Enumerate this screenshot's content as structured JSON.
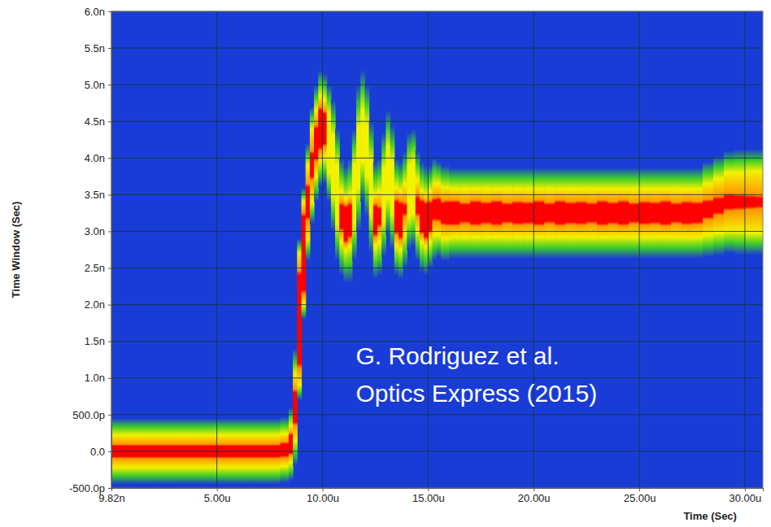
{
  "chart_data": {
    "type": "heatmap",
    "x_label": "Time (Sec)",
    "y_label": "Time Window (Sec)",
    "annotations": [
      "G. Rodriguez et al.",
      "Optics Express (2015)"
    ],
    "grid": true,
    "xlim": [
      9.82e-09,
      3.085e-05
    ],
    "xticks": [
      {
        "value": 9.82e-09,
        "label": "9.82n"
      },
      {
        "value": 5e-06,
        "label": "5.00u"
      },
      {
        "value": 1e-05,
        "label": "10.00u"
      },
      {
        "value": 1.5e-05,
        "label": "15.00u"
      },
      {
        "value": 2e-05,
        "label": "20.00u"
      },
      {
        "value": 2.5e-05,
        "label": "25.00u"
      },
      {
        "value": 3e-05,
        "label": "30.00u"
      }
    ],
    "ylim": [
      -5e-10,
      6e-09
    ],
    "yticks": [
      {
        "value": -5e-10,
        "label": "-500.0p"
      },
      {
        "value": 0,
        "label": "0.0"
      },
      {
        "value": 5e-10,
        "label": "500.0p"
      },
      {
        "value": 1e-09,
        "label": "1.0n"
      },
      {
        "value": 1.5e-09,
        "label": "1.5n"
      },
      {
        "value": 2e-09,
        "label": "2.0n"
      },
      {
        "value": 2.5e-09,
        "label": "2.5n"
      },
      {
        "value": 3e-09,
        "label": "3.0n"
      },
      {
        "value": 3.5e-09,
        "label": "3.5n"
      },
      {
        "value": 4e-09,
        "label": "4.0n"
      },
      {
        "value": 4.5e-09,
        "label": "4.5n"
      },
      {
        "value": 5e-09,
        "label": "5.0n"
      },
      {
        "value": 5.5e-09,
        "label": "5.5n"
      },
      {
        "value": 6e-09,
        "label": "6.0n"
      }
    ],
    "bins": [
      9.82e-09,
      1e-06,
      2e-06,
      3e-06,
      4e-06,
      5e-06,
      6e-06,
      7e-06,
      8e-06,
      8.4e-06,
      8.6e-06,
      8.8e-06,
      9e-06,
      9.2e-06,
      9.4e-06,
      9.6e-06,
      9.8e-06,
      1e-05,
      1.02e-05,
      1.04e-05,
      1.06e-05,
      1.08e-05,
      1.1e-05,
      1.12e-05,
      1.14e-05,
      1.16e-05,
      1.18e-05,
      1.2e-05,
      1.22e-05,
      1.24e-05,
      1.26e-05,
      1.28e-05,
      1.3e-05,
      1.32e-05,
      1.34e-05,
      1.36e-05,
      1.38e-05,
      1.4e-05,
      1.42e-05,
      1.44e-05,
      1.46e-05,
      1.48e-05,
      1.5e-05,
      1.52e-05,
      1.54e-05,
      1.56e-05,
      1.58e-05,
      1.6e-05,
      1.65e-05,
      1.7e-05,
      1.75e-05,
      1.8e-05,
      1.85e-05,
      1.9e-05,
      1.95e-05,
      2e-05,
      2.05e-05,
      2.1e-05,
      2.15e-05,
      2.2e-05,
      2.25e-05,
      2.3e-05,
      2.35e-05,
      2.4e-05,
      2.45e-05,
      2.5e-05,
      2.55e-05,
      2.6e-05,
      2.65e-05,
      2.7e-05,
      2.75e-05,
      2.8e-05,
      2.85e-05,
      2.9e-05,
      2.95e-05,
      3e-05,
      3.05e-05,
      3.085e-05
    ],
    "center": [
      0,
      0,
      0,
      0,
      0,
      0,
      0,
      0,
      2e-11,
      1e-10,
      6e-10,
      1.8e-09,
      2.7e-09,
      3.4e-09,
      3.9e-09,
      4.2e-09,
      4.4e-09,
      4.4e-09,
      4.2e-09,
      3.9e-09,
      3.5e-09,
      3.2e-09,
      3.1e-09,
      3.15e-09,
      3.5e-09,
      4e-09,
      4.3e-09,
      4.1e-09,
      3.6e-09,
      3.15e-09,
      3.2e-09,
      3.5e-09,
      3.8e-09,
      3.6e-09,
      3.2e-09,
      3.15e-09,
      3.3e-09,
      3.55e-09,
      3.6e-09,
      3.35e-09,
      3.2e-09,
      3.15e-09,
      3.2e-09,
      3.3e-09,
      3.3e-09,
      3.25e-09,
      3.25e-09,
      3.25e-09,
      3.25e-09,
      3.25e-09,
      3.25e-09,
      3.25e-09,
      3.25e-09,
      3.25e-09,
      3.25e-09,
      3.25e-09,
      3.25e-09,
      3.25e-09,
      3.25e-09,
      3.25e-09,
      3.25e-09,
      3.25e-09,
      3.25e-09,
      3.25e-09,
      3.25e-09,
      3.25e-09,
      3.25e-09,
      3.25e-09,
      3.25e-09,
      3.25e-09,
      3.25e-09,
      3.3e-09,
      3.35e-09,
      3.4e-09,
      3.4e-09,
      3.4e-09,
      3.4e-09
    ],
    "halfwidth_green": [
      4.5e-10,
      4.5e-10,
      4.5e-10,
      4.5e-10,
      4.5e-10,
      4.5e-10,
      4.5e-10,
      4.5e-10,
      4.5e-10,
      5e-10,
      8e-10,
      1.1e-09,
      9e-10,
      8e-10,
      8e-10,
      8e-10,
      8e-10,
      7.5e-10,
      8e-10,
      9e-10,
      9e-10,
      8e-10,
      8e-10,
      8.5e-10,
      9e-10,
      1e-09,
      9e-10,
      9e-10,
      9e-10,
      8e-10,
      8e-10,
      8.5e-10,
      8.5e-10,
      8.5e-10,
      8e-10,
      8e-10,
      8e-10,
      8e-10,
      8e-10,
      7.5e-10,
      7.5e-10,
      7.5e-10,
      7e-10,
      7e-10,
      6.5e-10,
      6.5e-10,
      6.5e-10,
      6.2e-10,
      6.2e-10,
      6.2e-10,
      6.2e-10,
      6.2e-10,
      6.2e-10,
      6.2e-10,
      6.2e-10,
      6.2e-10,
      6.2e-10,
      6.2e-10,
      6.2e-10,
      6.2e-10,
      6.2e-10,
      6.2e-10,
      6.2e-10,
      6.2e-10,
      6.2e-10,
      6.2e-10,
      6.2e-10,
      6.2e-10,
      6.2e-10,
      6.2e-10,
      6.2e-10,
      6.5e-10,
      6.8e-10,
      7e-10,
      7.2e-10,
      7.2e-10,
      7.2e-10
    ],
    "halfwidth_yellow": [
      2.2e-10,
      2.2e-10,
      2.2e-10,
      2.2e-10,
      2.2e-10,
      2.2e-10,
      2.2e-10,
      2.2e-10,
      2.2e-10,
      2.5e-10,
      4.5e-10,
      9e-10,
      7e-10,
      5e-10,
      5e-10,
      4.5e-10,
      4.5e-10,
      4e-10,
      4e-10,
      4e-10,
      4e-10,
      3.5e-10,
      3.5e-10,
      3.5e-10,
      4e-10,
      4e-10,
      3.5e-10,
      3.5e-10,
      3.5e-10,
      3.5e-10,
      3.5e-10,
      3.5e-10,
      3.5e-10,
      3.5e-10,
      4e-10,
      4e-10,
      3.5e-10,
      3.5e-10,
      3.5e-10,
      3.5e-10,
      3.5e-10,
      3.5e-10,
      3.5e-10,
      3.5e-10,
      3.5e-10,
      3.5e-10,
      3.5e-10,
      3.3e-10,
      3.3e-10,
      3.3e-10,
      3.3e-10,
      3.3e-10,
      3.3e-10,
      3.3e-10,
      3.3e-10,
      3.3e-10,
      3.3e-10,
      3.3e-10,
      3.3e-10,
      3.3e-10,
      3.3e-10,
      3.3e-10,
      3.3e-10,
      3.3e-10,
      3.3e-10,
      3.3e-10,
      3.3e-10,
      3.3e-10,
      3.3e-10,
      3.3e-10,
      3.3e-10,
      3.5e-10,
      3.7e-10,
      4e-10,
      4e-10,
      4.2e-10,
      4.2e-10
    ],
    "halfwidth_red": [
      7e-11,
      7e-11,
      7e-11,
      7e-11,
      7e-11,
      7e-11,
      7e-11,
      7e-11,
      8e-11,
      1.2e-10,
      2e-10,
      6e-10,
      5e-10,
      2e-10,
      1.5e-10,
      2e-10,
      2.5e-10,
      2e-10,
      0,
      0,
      0,
      1.5e-10,
      2.2e-10,
      2e-10,
      0,
      0,
      0,
      0,
      0,
      1.8e-10,
      1e-10,
      0,
      0,
      0,
      2e-10,
      2.2e-10,
      5e-11,
      0,
      0,
      1e-10,
      2e-10,
      2.2e-10,
      1.8e-10,
      1.2e-10,
      1.3e-10,
      1.3e-10,
      1.4e-10,
      1.4e-10,
      1.1e-10,
      1.4e-10,
      1.2e-10,
      1.4e-10,
      1.1e-10,
      1.3e-10,
      1.2e-10,
      1.4e-10,
      1.1e-10,
      1.4e-10,
      1.2e-10,
      1.3e-10,
      1.1e-10,
      1.4e-10,
      1.2e-10,
      1.4e-10,
      1.1e-10,
      1.3e-10,
      1.2e-10,
      1.4e-10,
      1.1e-10,
      1.3e-10,
      1.2e-10,
      1e-10,
      9e-11,
      8e-11,
      7e-11,
      6e-11,
      5e-11
    ]
  }
}
